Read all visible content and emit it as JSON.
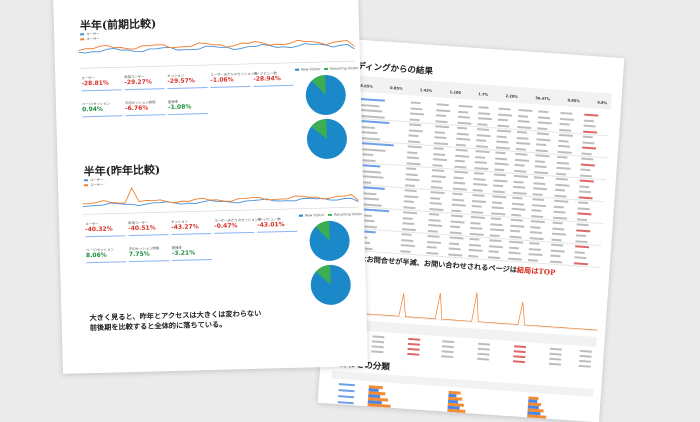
{
  "front": {
    "section1": {
      "title": "半年(前期比較)",
      "metrics": [
        {
          "label": "ユーザー",
          "value": "-28.81%",
          "trend": "neg"
        },
        {
          "label": "新規ユーザー",
          "value": "-29.27%",
          "trend": "neg"
        },
        {
          "label": "セッション",
          "value": "-29.57%",
          "trend": "neg"
        },
        {
          "label": "ユーザーあたりのセッション数",
          "value": "-1.06%",
          "trend": "neg"
        },
        {
          "label": "ページビュー数",
          "value": "-28.94%",
          "trend": "neg"
        },
        {
          "label": "ページ/セッション",
          "value": "0.94%",
          "trend": "pos"
        },
        {
          "label": "平均セッション時間",
          "value": "-6.76%",
          "trend": "neg"
        },
        {
          "label": "直帰率",
          "value": "-1.08%",
          "trend": "pos"
        }
      ],
      "pie_legend": [
        "New Visitor",
        "Returning Visitor"
      ]
    },
    "section2": {
      "title": "半年(昨年比較)",
      "metrics": [
        {
          "label": "ユーザー",
          "value": "-40.32%",
          "trend": "neg"
        },
        {
          "label": "新規ユーザー",
          "value": "-40.51%",
          "trend": "neg"
        },
        {
          "label": "セッション",
          "value": "-43.27%",
          "trend": "neg"
        },
        {
          "label": "ユーザーあたりのセッション数",
          "value": "-0.47%",
          "trend": "neg"
        },
        {
          "label": "ページビュー数",
          "value": "-43.01%",
          "trend": "neg"
        },
        {
          "label": "ページ/セッション",
          "value": "8.06%",
          "trend": "pos"
        },
        {
          "label": "平均セッション時間",
          "value": "7.75%",
          "trend": "pos"
        },
        {
          "label": "直帰率",
          "value": "-3.21%",
          "trend": "pos"
        }
      ],
      "pie_legend": [
        "New Visitor",
        "Returning Visitor"
      ]
    },
    "series_legend": [
      "ユーザー",
      "ユーザー"
    ],
    "summary_line1": "大きく見ると、昨年とアクセスは大きくは変わらない",
    "summary_line2": "前後期を比較すると全体的に落ちている。"
  },
  "back": {
    "title1": "ディングからの結果",
    "title2_prefix": "の半年はお問合せが半減、お問い合わせされるページは",
    "title2_highlight": "結局はTOP",
    "title2_line2": "は",
    "title3": "い合わせの分類",
    "stat_values": [
      "28.65%",
      "0.85%",
      "1.43%",
      "1,106",
      "1.7%",
      "2.20%",
      "36.47%",
      "0.85%",
      "6.8%"
    ]
  },
  "colors": {
    "series_blue": "#4a8fd4",
    "series_orange": "#ef7d2f",
    "pie_blue": "#1a88c9",
    "pie_green": "#3cae52"
  }
}
